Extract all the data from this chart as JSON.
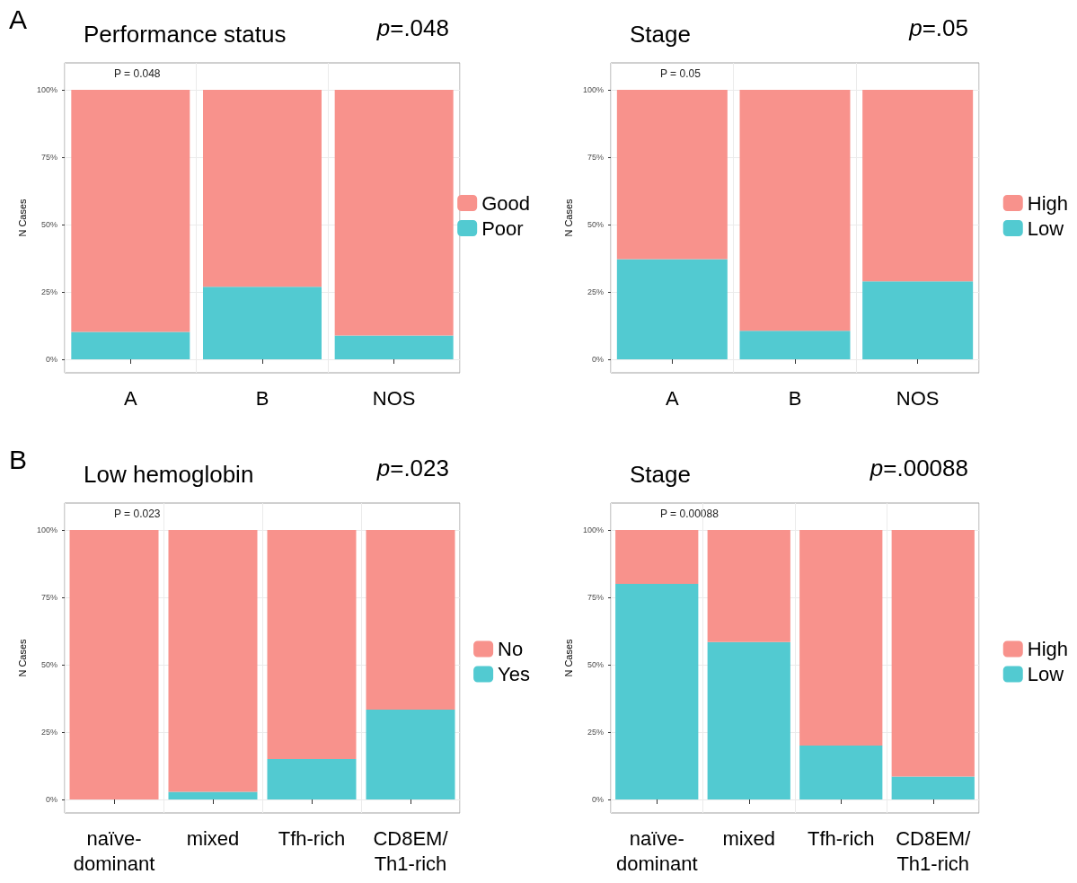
{
  "chart_data": [
    {
      "type": "bar",
      "title": "Performance status",
      "ylabel": "N Cases",
      "categories": [
        "A",
        "B",
        "NOS"
      ],
      "stacked": true,
      "ylim": [
        -5,
        110
      ],
      "yticks": [
        {
          "value": 0,
          "label": "0%"
        },
        {
          "value": 25,
          "label": "25%"
        },
        {
          "value": 50,
          "label": "50%"
        },
        {
          "value": 75,
          "label": "75%"
        },
        {
          "value": 100,
          "label": "100%"
        }
      ],
      "grid": true,
      "legend": "right",
      "annotations": [
        "p=.048",
        "P = 0.048",
        "A"
      ],
      "series": [
        {
          "name": "Poor",
          "color": "#52cad1",
          "values": [
            10.2,
            26.9,
            8.8
          ]
        },
        {
          "name": "Good",
          "color": "#f8928c",
          "values": [
            89.8,
            73.1,
            91.2
          ]
        }
      ]
    },
    {
      "type": "bar",
      "title": "Stage",
      "ylabel": "N Cases",
      "categories": [
        "A",
        "B",
        "NOS"
      ],
      "stacked": true,
      "ylim": [
        -5,
        110
      ],
      "yticks": [
        {
          "value": 0,
          "label": "0%"
        },
        {
          "value": 25,
          "label": "25%"
        },
        {
          "value": 50,
          "label": "50%"
        },
        {
          "value": 75,
          "label": "75%"
        },
        {
          "value": 100,
          "label": "100%"
        }
      ],
      "grid": true,
      "legend": "right",
      "annotations": [
        "p=.05",
        "P = 0.05"
      ],
      "series": [
        {
          "name": "Low",
          "color": "#52cad1",
          "values": [
            37.2,
            10.6,
            28.9
          ]
        },
        {
          "name": "High",
          "color": "#f8928c",
          "values": [
            62.8,
            89.4,
            71.1
          ]
        }
      ]
    },
    {
      "type": "bar",
      "title": "Low hemoglobin",
      "ylabel": "N Cases",
      "categories": [
        "naïve-\ndominant",
        "mixed",
        "Tfh-rich",
        "CD8EM/\nTh1-rich"
      ],
      "stacked": true,
      "ylim": [
        -5,
        110
      ],
      "yticks": [
        {
          "value": 0,
          "label": "0%"
        },
        {
          "value": 25,
          "label": "25%"
        },
        {
          "value": 50,
          "label": "50%"
        },
        {
          "value": 75,
          "label": "75%"
        },
        {
          "value": 100,
          "label": "100%"
        }
      ],
      "grid": true,
      "legend": "right",
      "annotations": [
        "p=.023",
        "P = 0.023",
        "B"
      ],
      "series": [
        {
          "name": "Yes",
          "color": "#52cad1",
          "values": [
            0,
            2.8,
            15.0,
            33.3
          ]
        },
        {
          "name": "No",
          "color": "#f8928c",
          "values": [
            100,
            97.2,
            85.0,
            66.7
          ]
        }
      ]
    },
    {
      "type": "bar",
      "title": "Stage",
      "ylabel": "N Cases",
      "categories": [
        "naïve-\ndominant",
        "mixed",
        "Tfh-rich",
        "CD8EM/\nTh1-rich"
      ],
      "stacked": true,
      "ylim": [
        -5,
        110
      ],
      "yticks": [
        {
          "value": 0,
          "label": "0%"
        },
        {
          "value": 25,
          "label": "25%"
        },
        {
          "value": 50,
          "label": "50%"
        },
        {
          "value": 75,
          "label": "75%"
        },
        {
          "value": 100,
          "label": "100%"
        }
      ],
      "grid": true,
      "legend": "right",
      "annotations": [
        "p=.00088",
        "P = 0.00088"
      ],
      "series": [
        {
          "name": "Low",
          "color": "#52cad1",
          "values": [
            80.0,
            58.4,
            20.0,
            8.5
          ]
        },
        {
          "name": "High",
          "color": "#f8928c",
          "values": [
            20.0,
            41.6,
            80.0,
            91.5
          ]
        }
      ]
    }
  ]
}
